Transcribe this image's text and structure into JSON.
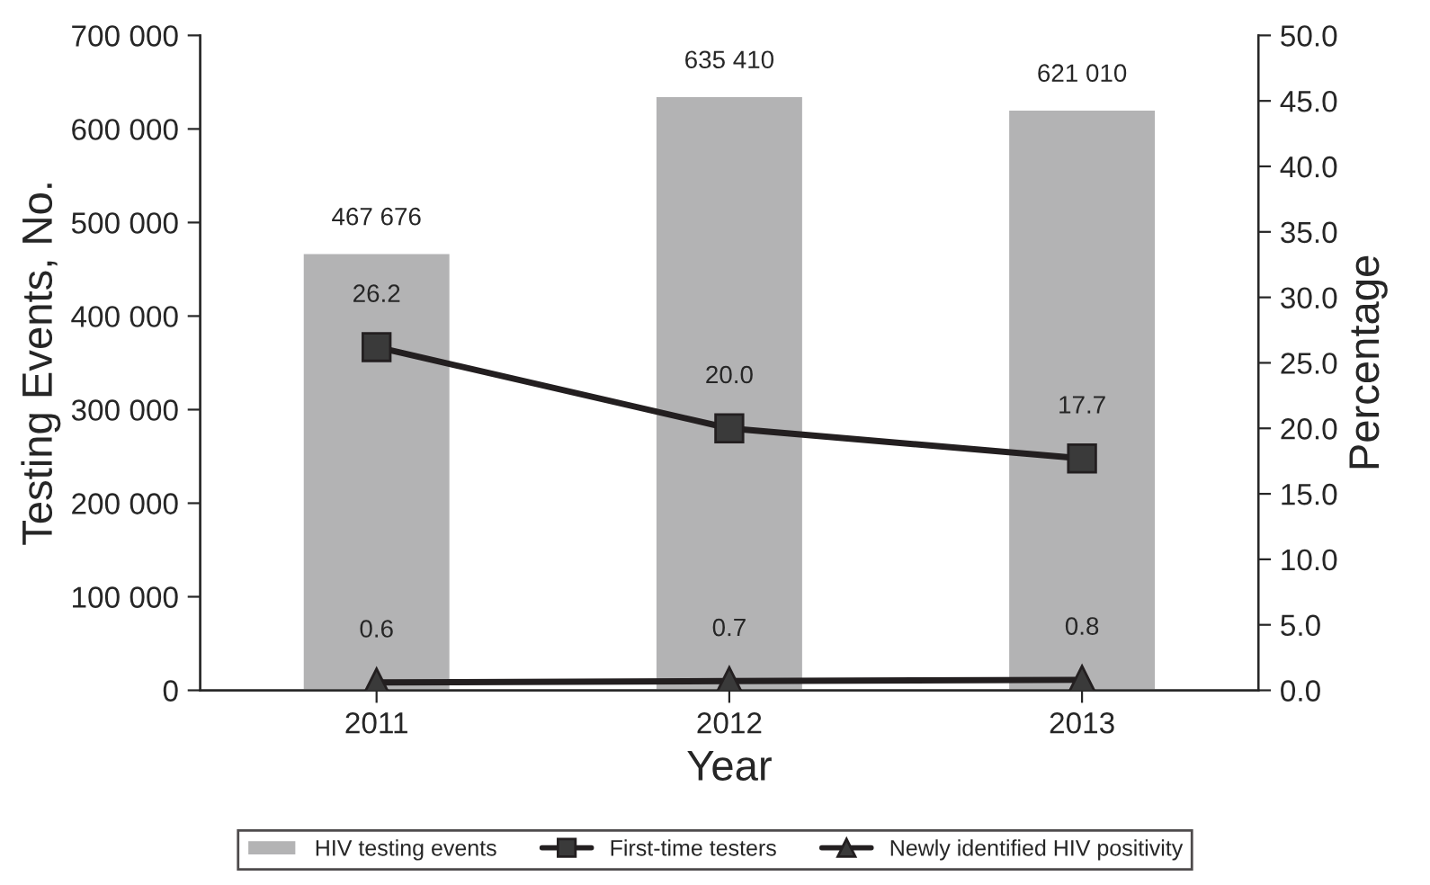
{
  "chart_data": {
    "type": "bar",
    "xlabel": "Year",
    "ylabel": "Testing Events, No.",
    "y2label": "Percentage",
    "categories": [
      "2011",
      "2012",
      "2013"
    ],
    "series": [
      {
        "name": "HIV testing events",
        "color": "#b3b3b4",
        "values": [
          467676,
          635410,
          621010
        ],
        "value_labels": [
          "467 676",
          "635 410",
          "621 010"
        ]
      },
      {
        "name": "First-time testers",
        "type": "line",
        "axis": "y2",
        "color": "#231f20",
        "marker": "square",
        "values": [
          26.2,
          20.0,
          17.7
        ],
        "value_labels": [
          "26.2",
          "20.0",
          "17.7"
        ]
      },
      {
        "name": "Newly identified HIV positivity",
        "type": "line",
        "axis": "y2",
        "color": "#231f20",
        "marker": "triangle",
        "values": [
          0.6,
          0.7,
          0.8
        ],
        "value_labels": [
          "0.6",
          "0.7",
          "0.8"
        ]
      }
    ],
    "ylim": [
      0,
      700000
    ],
    "yticks": [
      {
        "value": 0,
        "label": "0"
      },
      {
        "value": 100000,
        "label": "100 000"
      },
      {
        "value": 200000,
        "label": "200 000"
      },
      {
        "value": 300000,
        "label": "300 000"
      },
      {
        "value": 400000,
        "label": "400 000"
      },
      {
        "value": 500000,
        "label": "500 000"
      },
      {
        "value": 600000,
        "label": "600 000"
      },
      {
        "value": 700000,
        "label": "700 000"
      }
    ],
    "y2lim": [
      0,
      50
    ],
    "y2ticks": [
      {
        "value": 0,
        "label": "0.0"
      },
      {
        "value": 5,
        "label": "5.0"
      },
      {
        "value": 10,
        "label": "10.0"
      },
      {
        "value": 15,
        "label": "15.0"
      },
      {
        "value": 20,
        "label": "20.0"
      },
      {
        "value": 25,
        "label": "25.0"
      },
      {
        "value": 30,
        "label": "30.0"
      },
      {
        "value": 35,
        "label": "35.0"
      },
      {
        "value": 40,
        "label": "40.0"
      },
      {
        "value": 45,
        "label": "45.0"
      },
      {
        "value": 50,
        "label": "50.0"
      }
    ],
    "grid": false,
    "legend": "bottom",
    "line_style": "solid"
  }
}
